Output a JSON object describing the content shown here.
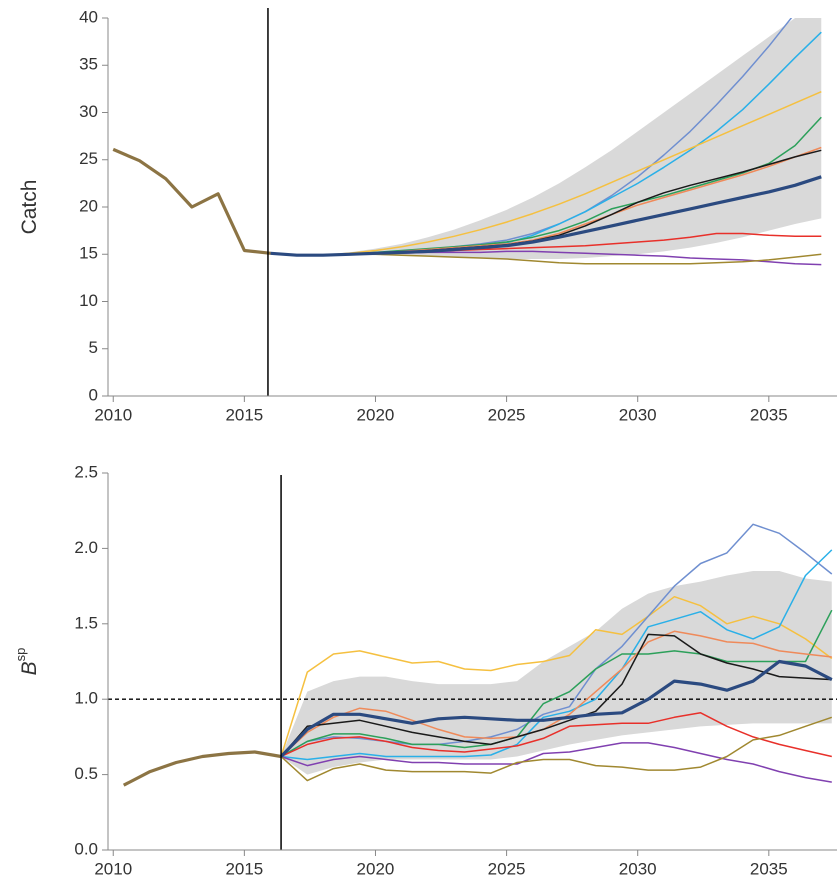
{
  "chart_data": [
    {
      "type": "line",
      "ylabel": "Catch",
      "x": [
        2010,
        2011,
        2012,
        2013,
        2014,
        2015,
        2016,
        2017,
        2018,
        2019,
        2020,
        2021,
        2022,
        2023,
        2024,
        2025,
        2026,
        2027,
        2028,
        2029,
        2030,
        2031,
        2032,
        2033,
        2034,
        2035,
        2036,
        2037
      ],
      "xlim": [
        2009.8,
        2037.6
      ],
      "xticks": [
        2010,
        2015,
        2020,
        2025,
        2030,
        2035
      ],
      "ylim": [
        0,
        40
      ],
      "yticks": [
        0,
        5,
        10,
        15,
        20,
        25,
        30,
        35,
        40
      ],
      "vline": 2015.9,
      "band": {
        "color": "#d9d9d9",
        "lower": [
          null,
          null,
          null,
          null,
          null,
          null,
          15,
          14.8,
          14.8,
          14.9,
          14.9,
          14.9,
          14.8,
          14.7,
          14.6,
          14.5,
          14.5,
          14.5,
          14.6,
          14.8,
          15,
          15.3,
          15.7,
          16.2,
          16.8,
          17.5,
          18.2,
          18.8
        ],
        "upper": [
          null,
          null,
          null,
          null,
          null,
          null,
          15,
          15,
          15,
          15.2,
          15.6,
          16.1,
          16.8,
          17.6,
          18.6,
          19.7,
          21,
          22.5,
          24.2,
          26,
          28,
          30,
          32,
          34,
          36,
          38,
          40,
          42
        ]
      },
      "series": [
        {
          "color": "#8c7444",
          "thick": true,
          "values": [
            26.1,
            24.9,
            23,
            20,
            21.4,
            15.4,
            15.1,
            null,
            null,
            null,
            null,
            null,
            null,
            null,
            null,
            null,
            null,
            null,
            null,
            null,
            null,
            null,
            null,
            null,
            null,
            null,
            null,
            null
          ]
        },
        {
          "color": "#6f8fd0",
          "values": [
            null,
            null,
            null,
            null,
            null,
            null,
            15.1,
            14.9,
            14.9,
            15,
            15.1,
            15.3,
            15.5,
            15.8,
            16.1,
            16.5,
            17.2,
            18.2,
            19.5,
            21.2,
            23.2,
            25.5,
            28,
            30.8,
            33.8,
            37,
            40.5,
            44
          ]
        },
        {
          "color": "#2ab0e8",
          "values": [
            null,
            null,
            null,
            null,
            null,
            null,
            15.1,
            14.9,
            14.9,
            15,
            15.1,
            15.3,
            15.5,
            15.7,
            15.9,
            16.2,
            17,
            18.2,
            19.5,
            21,
            22.5,
            24.2,
            26,
            28,
            30.3,
            33,
            35.8,
            38.5
          ]
        },
        {
          "color": "#f5c040",
          "values": [
            null,
            null,
            null,
            null,
            null,
            null,
            15.1,
            14.9,
            14.9,
            15.1,
            15.4,
            15.8,
            16.3,
            16.9,
            17.6,
            18.4,
            19.3,
            20.3,
            21.4,
            22.6,
            23.8,
            25,
            26.2,
            27.4,
            28.6,
            29.8,
            31,
            32.2
          ]
        },
        {
          "color": "#2ca05a",
          "values": [
            null,
            null,
            null,
            null,
            null,
            null,
            15.1,
            14.9,
            14.9,
            15,
            15.2,
            15.4,
            15.6,
            15.8,
            16,
            16.3,
            16.8,
            17.5,
            18.5,
            19.8,
            20.5,
            21.2,
            22,
            22.8,
            23.6,
            24.6,
            26.5,
            29.5
          ]
        },
        {
          "color": "#ef8a5a",
          "values": [
            null,
            null,
            null,
            null,
            null,
            null,
            15.1,
            14.9,
            14.9,
            15,
            15.1,
            15.3,
            15.5,
            15.7,
            15.9,
            16.1,
            16.5,
            17.2,
            18.2,
            19.2,
            20.2,
            21,
            21.8,
            22.6,
            23.4,
            24.3,
            25.3,
            26.3
          ]
        },
        {
          "color": "#1a1a1a",
          "values": [
            null,
            null,
            null,
            null,
            null,
            null,
            15.1,
            14.9,
            14.9,
            15,
            15.1,
            15.2,
            15.4,
            15.6,
            15.8,
            16,
            16.4,
            17,
            18,
            19.2,
            20.5,
            21.5,
            22.3,
            23,
            23.7,
            24.5,
            25.3,
            26
          ]
        },
        {
          "color": "#e8302a",
          "values": [
            null,
            null,
            null,
            null,
            null,
            null,
            15.1,
            14.9,
            14.9,
            15,
            15.1,
            15.2,
            15.3,
            15.4,
            15.5,
            15.6,
            15.7,
            15.8,
            15.9,
            16.1,
            16.3,
            16.5,
            16.8,
            17.2,
            17.2,
            17,
            16.9,
            16.9
          ]
        },
        {
          "color": "#8040b0",
          "values": [
            null,
            null,
            null,
            null,
            null,
            null,
            15.1,
            14.9,
            14.9,
            15,
            15.1,
            15.1,
            15.2,
            15.2,
            15.2,
            15.3,
            15.3,
            15.2,
            15.1,
            15,
            14.9,
            14.8,
            14.6,
            14.5,
            14.4,
            14.2,
            14,
            13.9
          ]
        },
        {
          "color": "#a08830",
          "values": [
            null,
            null,
            null,
            null,
            null,
            null,
            15.1,
            14.9,
            14.9,
            15,
            15,
            14.9,
            14.8,
            14.7,
            14.6,
            14.5,
            14.3,
            14.1,
            14,
            14,
            14,
            14,
            14,
            14.1,
            14.2,
            14.4,
            14.7,
            15
          ]
        },
        {
          "color": "#2b4a80",
          "thick": true,
          "values": [
            null,
            null,
            null,
            null,
            null,
            null,
            15.1,
            14.9,
            14.9,
            15,
            15.1,
            15.2,
            15.3,
            15.5,
            15.7,
            15.9,
            16.3,
            16.8,
            17.4,
            18,
            18.6,
            19.2,
            19.8,
            20.4,
            21,
            21.6,
            22.3,
            23.2
          ]
        }
      ]
    },
    {
      "type": "line",
      "ylabel": "B",
      "ylabel_sup": "sp",
      "x": [
        2010.4,
        2011.4,
        2012.4,
        2013.4,
        2014.4,
        2015.4,
        2016.4,
        2017.4,
        2018.4,
        2019.4,
        2020.4,
        2021.4,
        2022.4,
        2023.4,
        2024.4,
        2025.4,
        2026.4,
        2027.4,
        2028.4,
        2029.4,
        2030.4,
        2031.4,
        2032.4,
        2033.4,
        2034.4,
        2035.4,
        2036.4,
        2037.4
      ],
      "xlim": [
        2009.8,
        2037.6
      ],
      "xticks": [
        2010,
        2015,
        2020,
        2025,
        2030,
        2035
      ],
      "ylim": [
        0,
        2.5
      ],
      "yticks": [
        {
          "value": 0,
          "label": "0.0"
        },
        0.5,
        {
          "value": 1,
          "label": "1.0"
        },
        1.5,
        {
          "value": 2,
          "label": "2.0"
        },
        2.5
      ],
      "vline": 2016.4,
      "hline": 1,
      "band": {
        "color": "#d9d9d9",
        "lower": [
          null,
          null,
          null,
          null,
          null,
          null,
          0.62,
          0.5,
          0.55,
          0.58,
          0.6,
          0.6,
          0.6,
          0.6,
          0.6,
          0.62,
          0.66,
          0.7,
          0.73,
          0.76,
          0.78,
          0.8,
          0.82,
          0.83,
          0.84,
          0.84,
          0.84,
          0.84
        ],
        "upper": [
          null,
          null,
          null,
          null,
          null,
          null,
          0.62,
          1.05,
          1.12,
          1.15,
          1.15,
          1.12,
          1.1,
          1.1,
          1.1,
          1.12,
          1.25,
          1.35,
          1.45,
          1.6,
          1.7,
          1.75,
          1.78,
          1.82,
          1.85,
          1.85,
          1.8,
          1.78
        ]
      },
      "series": [
        {
          "color": "#8c7444",
          "thick": true,
          "values": [
            0.43,
            0.52,
            0.58,
            0.62,
            0.64,
            0.65,
            0.62,
            null,
            null,
            null,
            null,
            null,
            null,
            null,
            null,
            null,
            null,
            null,
            null,
            null,
            null,
            null,
            null,
            null,
            null,
            null,
            null,
            null
          ]
        },
        {
          "color": "#f5c040",
          "values": [
            null,
            null,
            null,
            null,
            null,
            null,
            0.62,
            1.18,
            1.3,
            1.32,
            1.28,
            1.24,
            1.25,
            1.2,
            1.19,
            1.23,
            1.25,
            1.29,
            1.46,
            1.43,
            1.55,
            1.68,
            1.62,
            1.5,
            1.55,
            1.5,
            1.4,
            1.27
          ]
        },
        {
          "color": "#6f8fd0",
          "values": [
            null,
            null,
            null,
            null,
            null,
            null,
            0.62,
            0.72,
            0.75,
            0.74,
            0.72,
            0.7,
            0.7,
            0.72,
            0.75,
            0.8,
            0.9,
            0.95,
            1.2,
            1.35,
            1.55,
            1.75,
            1.9,
            1.97,
            2.16,
            2.1,
            1.97,
            1.83
          ]
        },
        {
          "color": "#2ab0e8",
          "values": [
            null,
            null,
            null,
            null,
            null,
            null,
            0.62,
            0.6,
            0.62,
            0.64,
            0.62,
            0.62,
            0.62,
            0.62,
            0.63,
            0.7,
            0.88,
            0.92,
            1,
            1.2,
            1.48,
            1.53,
            1.58,
            1.46,
            1.4,
            1.48,
            1.82,
            1.99
          ]
        },
        {
          "color": "#2ca05a",
          "values": [
            null,
            null,
            null,
            null,
            null,
            null,
            0.62,
            0.72,
            0.77,
            0.77,
            0.74,
            0.7,
            0.7,
            0.68,
            0.7,
            0.75,
            0.97,
            1.05,
            1.2,
            1.3,
            1.3,
            1.32,
            1.3,
            1.25,
            1.25,
            1.25,
            1.25,
            1.59
          ]
        },
        {
          "color": "#ef8a5a",
          "values": [
            null,
            null,
            null,
            null,
            null,
            null,
            0.62,
            0.78,
            0.88,
            0.94,
            0.92,
            0.86,
            0.8,
            0.75,
            0.74,
            0.75,
            0.8,
            0.9,
            1.05,
            1.2,
            1.38,
            1.45,
            1.42,
            1.38,
            1.37,
            1.32,
            1.3,
            1.28
          ]
        },
        {
          "color": "#1a1a1a",
          "values": [
            null,
            null,
            null,
            null,
            null,
            null,
            0.62,
            0.82,
            0.84,
            0.86,
            0.82,
            0.78,
            0.75,
            0.72,
            0.7,
            0.75,
            0.8,
            0.86,
            0.92,
            1.1,
            1.43,
            1.42,
            1.3,
            1.24,
            1.2,
            1.15,
            1.14,
            1.13
          ]
        },
        {
          "color": "#e8302a",
          "values": [
            null,
            null,
            null,
            null,
            null,
            null,
            0.62,
            0.7,
            0.74,
            0.75,
            0.72,
            0.68,
            0.66,
            0.65,
            0.67,
            0.69,
            0.74,
            0.82,
            0.83,
            0.84,
            0.84,
            0.88,
            0.91,
            0.82,
            0.75,
            0.7,
            0.66,
            0.62
          ]
        },
        {
          "color": "#8040b0",
          "values": [
            null,
            null,
            null,
            null,
            null,
            null,
            0.62,
            0.56,
            0.6,
            0.62,
            0.6,
            0.58,
            0.58,
            0.57,
            0.57,
            0.57,
            0.64,
            0.65,
            0.68,
            0.71,
            0.71,
            0.68,
            0.64,
            0.6,
            0.57,
            0.52,
            0.48,
            0.45
          ]
        },
        {
          "color": "#a08830",
          "values": [
            null,
            null,
            null,
            null,
            null,
            null,
            0.62,
            0.46,
            0.54,
            0.57,
            0.53,
            0.52,
            0.52,
            0.52,
            0.51,
            0.58,
            0.6,
            0.6,
            0.56,
            0.55,
            0.53,
            0.53,
            0.55,
            0.62,
            0.73,
            0.76,
            0.82,
            0.88
          ]
        },
        {
          "color": "#2b4a80",
          "thick": true,
          "values": [
            null,
            null,
            null,
            null,
            null,
            null,
            0.62,
            0.8,
            0.9,
            0.9,
            0.87,
            0.84,
            0.87,
            0.88,
            0.87,
            0.86,
            0.86,
            0.88,
            0.9,
            0.91,
            1,
            1.12,
            1.1,
            1.06,
            1.12,
            1.25,
            1.22,
            1.13
          ]
        }
      ]
    }
  ]
}
